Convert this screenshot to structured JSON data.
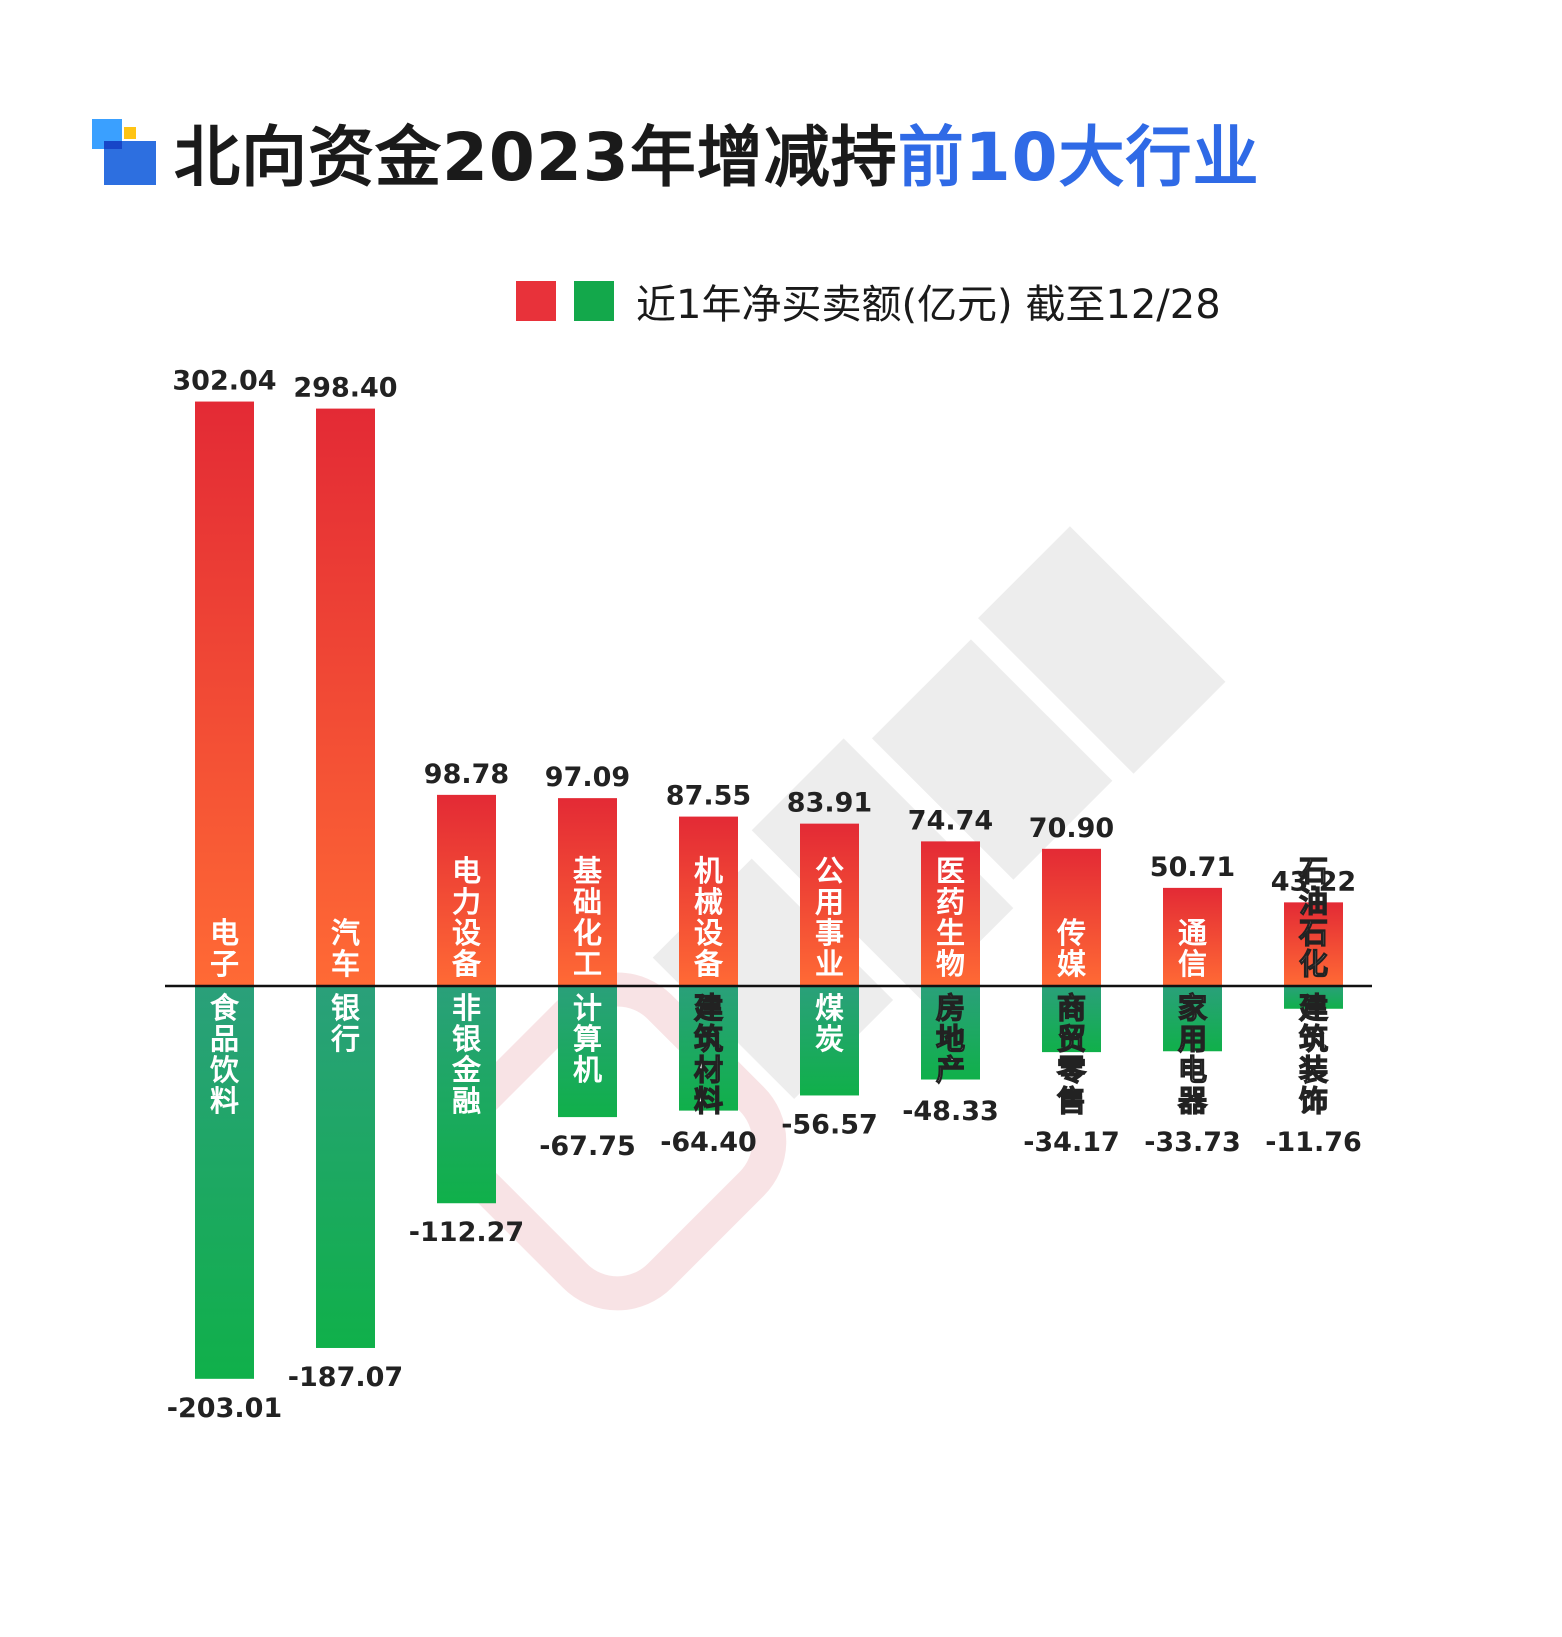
{
  "title": {
    "main": "北向资金2023年增减持",
    "highlight": "前10大行业"
  },
  "legend": {
    "text": "近1年净买卖额(亿元) 截至12/28",
    "colors": [
      "#e8323a",
      "#13a84b"
    ]
  },
  "colors": {
    "positive_top": "#e32a35",
    "positive_bottom": "#ff6a35",
    "negative_top": "#2aa07a",
    "negative_bottom": "#10b04a",
    "title_highlight": "#2f6ae6",
    "watermark": "#e6e6e6"
  },
  "chart_data": {
    "type": "bar",
    "title": "北向资金2023年增减持前10大行业",
    "unit": "亿元",
    "positive": {
      "categories": [
        "电子",
        "汽车",
        "电力设备",
        "基础化工",
        "机械设备",
        "公用事业",
        "医药生物",
        "传媒",
        "通信",
        "石油石化"
      ],
      "values": [
        302.04,
        298.4,
        98.78,
        97.09,
        87.55,
        83.91,
        74.74,
        70.9,
        50.71,
        43.22
      ],
      "labels": [
        "302.04",
        "298.40",
        "98.78",
        "97.09",
        "87.55",
        "83.91",
        "74.74",
        "70.90",
        "50.71",
        "43.22"
      ]
    },
    "negative": {
      "categories": [
        "食品饮料",
        "银行",
        "非银金融",
        "计算机",
        "建筑材料",
        "煤炭",
        "房地产",
        "商贸零售",
        "家用电器",
        "建筑装饰"
      ],
      "values": [
        -203.01,
        -187.07,
        -112.27,
        -67.75,
        -64.4,
        -56.57,
        -48.33,
        -34.17,
        -33.73,
        -11.76
      ],
      "labels": [
        "-203.01",
        "-187.07",
        "-112.27",
        "-67.75",
        "-64.40",
        "-56.57",
        "-48.33",
        "-34.17",
        "-33.73",
        "-11.76"
      ]
    }
  }
}
